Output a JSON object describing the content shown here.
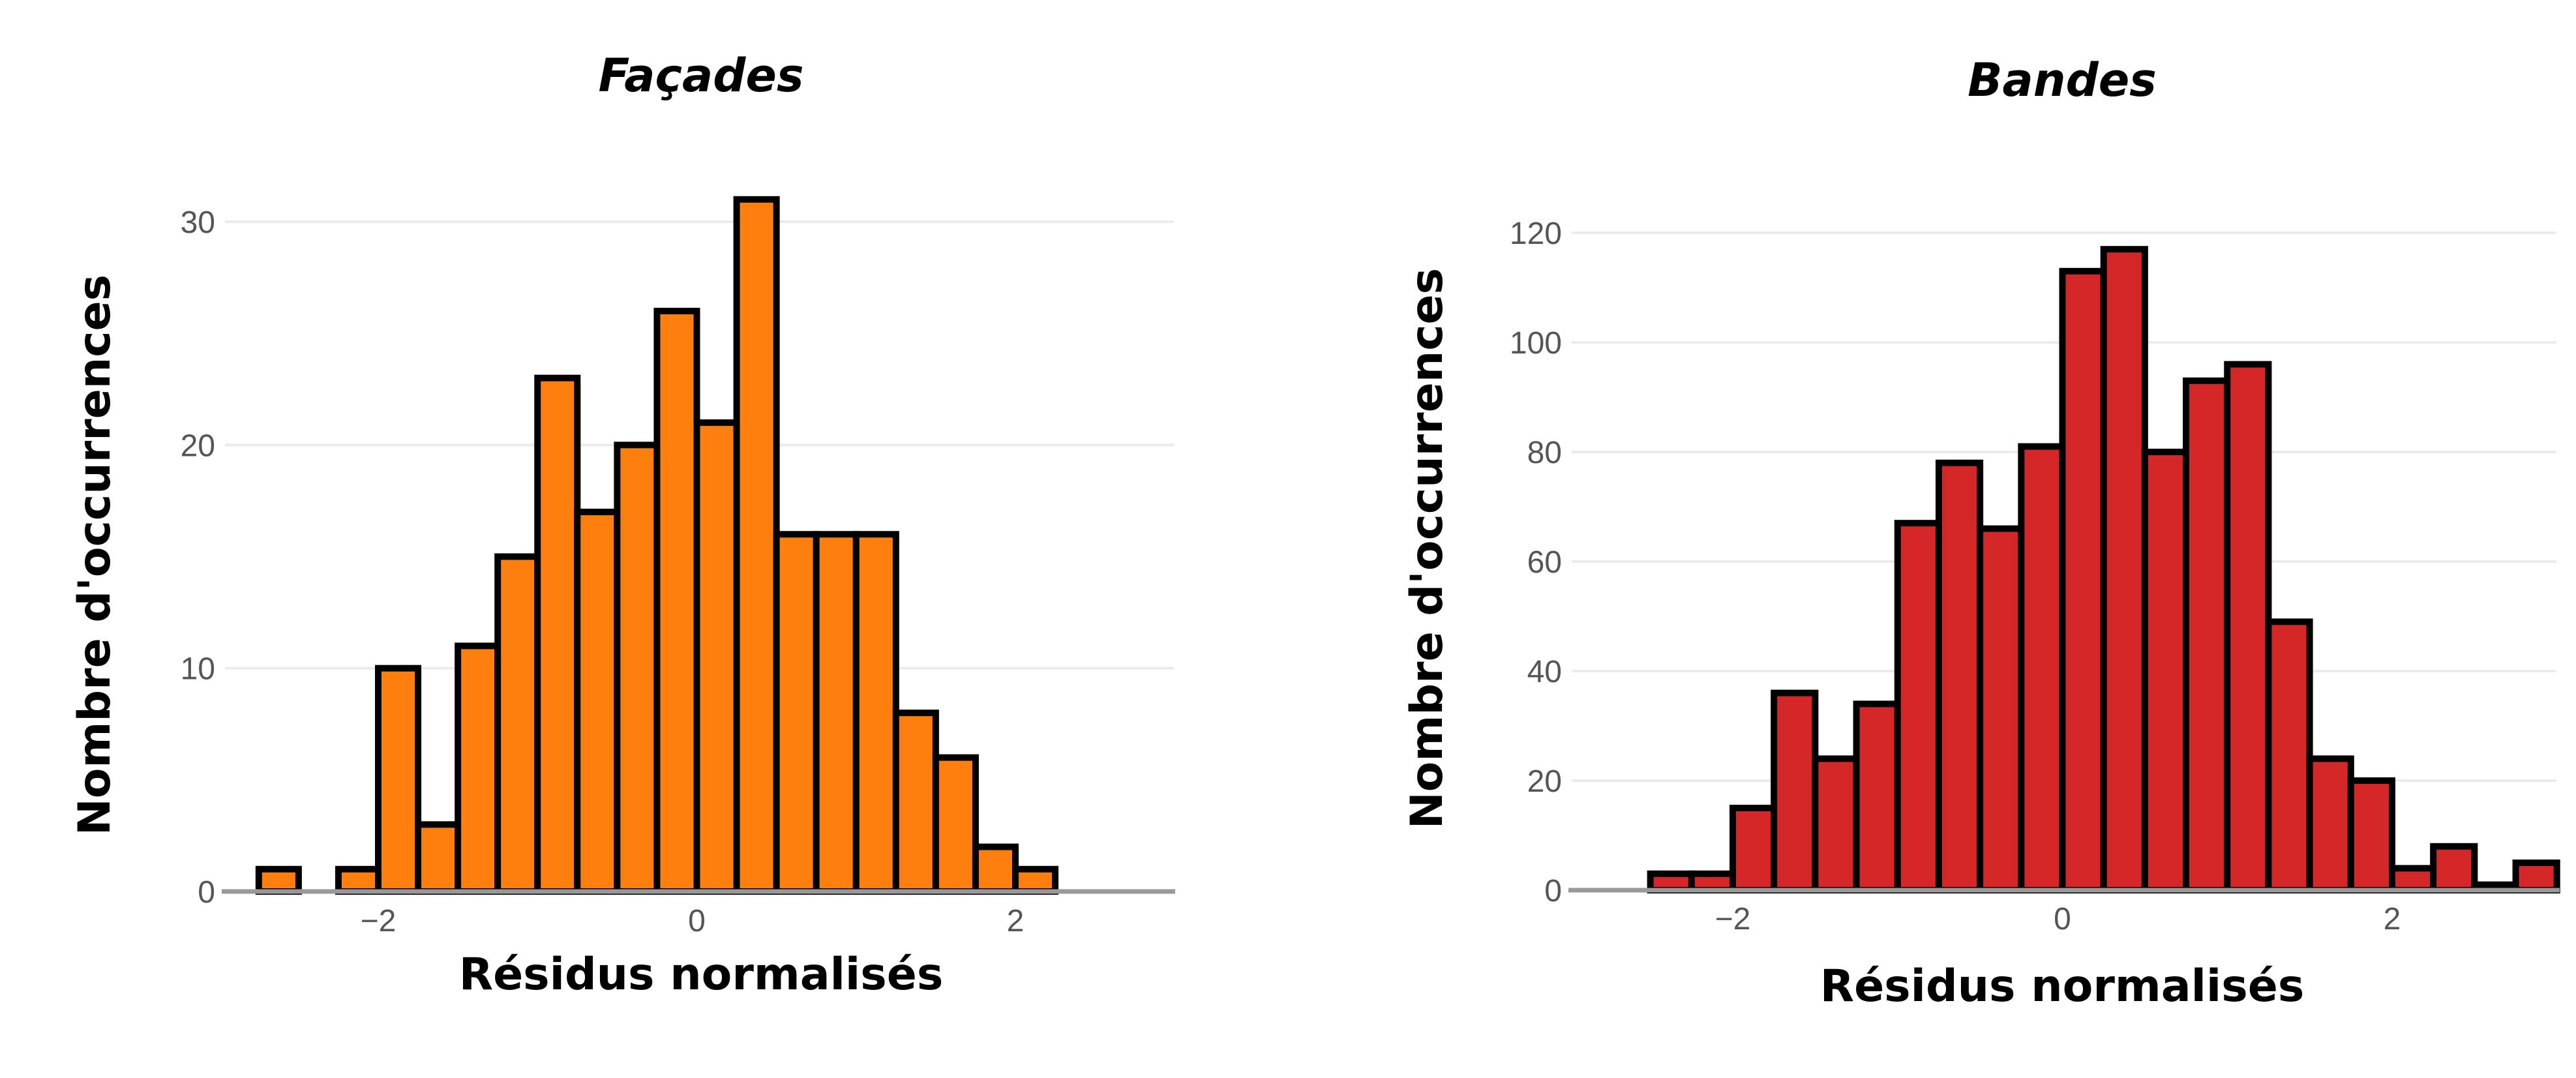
{
  "chart_data": [
    {
      "type": "bar",
      "title": "Façades",
      "xlabel": "Résidus normalisés",
      "ylabel": "Nombre d'occurrences",
      "color": "#ff7f0e",
      "bin_width": 0.25,
      "xlim": [
        -3.0,
        3.0
      ],
      "ylim": [
        0,
        32
      ],
      "x_ticks": [
        -2,
        0,
        2
      ],
      "x_tick_labels": [
        "−2",
        "0",
        "2"
      ],
      "y_ticks": [
        0,
        10,
        20,
        30
      ],
      "y_tick_labels": [
        "0",
        "10",
        "20",
        "30"
      ],
      "grid": true,
      "bins": [
        {
          "x0": -2.75,
          "x1": -2.5,
          "count": 1
        },
        {
          "x0": -2.25,
          "x1": -2.0,
          "count": 1
        },
        {
          "x0": -2.0,
          "x1": -1.75,
          "count": 10
        },
        {
          "x0": -1.75,
          "x1": -1.5,
          "count": 3
        },
        {
          "x0": -1.5,
          "x1": -1.25,
          "count": 11
        },
        {
          "x0": -1.25,
          "x1": -1.0,
          "count": 15
        },
        {
          "x0": -1.0,
          "x1": -0.75,
          "count": 23
        },
        {
          "x0": -0.75,
          "x1": -0.5,
          "count": 17
        },
        {
          "x0": -0.5,
          "x1": -0.25,
          "count": 20
        },
        {
          "x0": -0.25,
          "x1": 0.0,
          "count": 26
        },
        {
          "x0": 0.0,
          "x1": 0.25,
          "count": 21
        },
        {
          "x0": 0.25,
          "x1": 0.5,
          "count": 31
        },
        {
          "x0": 0.5,
          "x1": 0.75,
          "count": 16
        },
        {
          "x0": 0.75,
          "x1": 1.0,
          "count": 16
        },
        {
          "x0": 1.0,
          "x1": 1.25,
          "count": 16
        },
        {
          "x0": 1.25,
          "x1": 1.5,
          "count": 8
        },
        {
          "x0": 1.5,
          "x1": 1.75,
          "count": 6
        },
        {
          "x0": 1.75,
          "x1": 2.0,
          "count": 2
        },
        {
          "x0": 2.0,
          "x1": 2.25,
          "count": 1
        }
      ]
    },
    {
      "type": "bar",
      "title": "Bandes",
      "xlabel": "Résidus normalisés",
      "ylabel": "Nombre d'occurrences",
      "color": "#d62728",
      "bin_width": 0.25,
      "xlim": [
        -3.0,
        3.0
      ],
      "ylim": [
        0,
        122
      ],
      "x_ticks": [
        -2,
        0,
        2
      ],
      "x_tick_labels": [
        "−2",
        "0",
        "2"
      ],
      "y_ticks": [
        0,
        20,
        40,
        60,
        80,
        100,
        120
      ],
      "y_tick_labels": [
        "0",
        "20",
        "40",
        "60",
        "80",
        "100",
        "120"
      ],
      "grid": true,
      "bins": [
        {
          "x0": -2.5,
          "x1": -2.25,
          "count": 3
        },
        {
          "x0": -2.25,
          "x1": -2.0,
          "count": 3
        },
        {
          "x0": -2.0,
          "x1": -1.75,
          "count": 15
        },
        {
          "x0": -1.75,
          "x1": -1.5,
          "count": 36
        },
        {
          "x0": -1.5,
          "x1": -1.25,
          "count": 24
        },
        {
          "x0": -1.25,
          "x1": -1.0,
          "count": 34
        },
        {
          "x0": -1.0,
          "x1": -0.75,
          "count": 67
        },
        {
          "x0": -0.75,
          "x1": -0.5,
          "count": 78
        },
        {
          "x0": -0.5,
          "x1": -0.25,
          "count": 66
        },
        {
          "x0": -0.25,
          "x1": 0.0,
          "count": 81
        },
        {
          "x0": 0.0,
          "x1": 0.25,
          "count": 113
        },
        {
          "x0": 0.25,
          "x1": 0.5,
          "count": 117
        },
        {
          "x0": 0.5,
          "x1": 0.75,
          "count": 80
        },
        {
          "x0": 0.75,
          "x1": 1.0,
          "count": 93
        },
        {
          "x0": 1.0,
          "x1": 1.25,
          "count": 96
        },
        {
          "x0": 1.25,
          "x1": 1.5,
          "count": 49
        },
        {
          "x0": 1.5,
          "x1": 1.75,
          "count": 24
        },
        {
          "x0": 1.75,
          "x1": 2.0,
          "count": 20
        },
        {
          "x0": 2.0,
          "x1": 2.25,
          "count": 4
        },
        {
          "x0": 2.25,
          "x1": 2.5,
          "count": 8
        },
        {
          "x0": 2.5,
          "x1": 2.75,
          "count": 1
        },
        {
          "x0": 2.75,
          "x1": 3.0,
          "count": 5
        }
      ]
    }
  ]
}
